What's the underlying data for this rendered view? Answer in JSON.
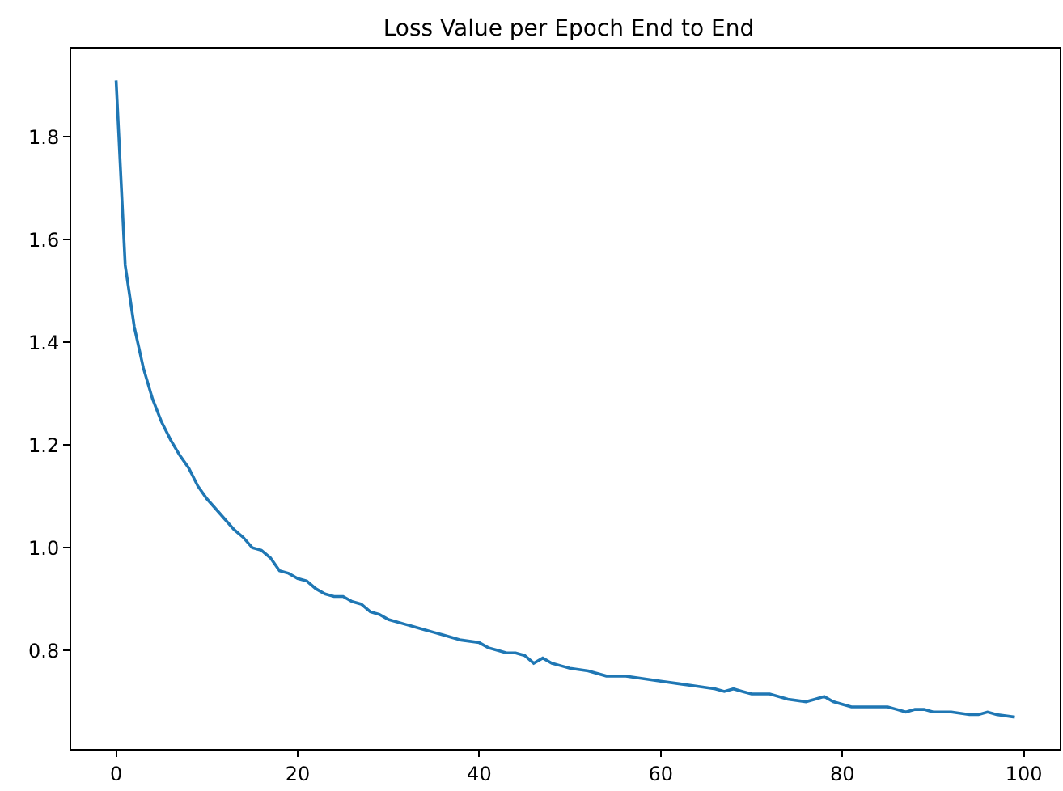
{
  "chart_data": {
    "type": "line",
    "title": "Loss Value per Epoch End to End",
    "x": [
      0,
      1,
      2,
      3,
      4,
      5,
      6,
      7,
      8,
      9,
      10,
      11,
      12,
      13,
      14,
      15,
      16,
      17,
      18,
      19,
      20,
      21,
      22,
      23,
      24,
      25,
      26,
      27,
      28,
      29,
      30,
      32,
      34,
      35,
      36,
      37,
      38,
      40,
      41,
      42,
      43,
      44,
      45,
      46,
      47,
      48,
      49,
      50,
      52,
      54,
      56,
      58,
      60,
      62,
      64,
      66,
      67,
      68,
      69,
      70,
      72,
      74,
      76,
      77,
      78,
      79,
      80,
      81,
      82,
      84,
      85,
      86,
      87,
      88,
      89,
      90,
      92,
      94,
      95,
      96,
      97,
      99
    ],
    "series": [
      {
        "color": "#1f77b4",
        "values": [
          1.91,
          1.55,
          1.43,
          1.35,
          1.29,
          1.245,
          1.21,
          1.18,
          1.155,
          1.12,
          1.095,
          1.075,
          1.055,
          1.035,
          1.02,
          1.0,
          0.995,
          0.98,
          0.955,
          0.95,
          0.94,
          0.935,
          0.92,
          0.91,
          0.905,
          0.905,
          0.895,
          0.89,
          0.875,
          0.87,
          0.86,
          0.85,
          0.84,
          0.835,
          0.83,
          0.825,
          0.82,
          0.815,
          0.805,
          0.8,
          0.795,
          0.795,
          0.79,
          0.775,
          0.785,
          0.775,
          0.77,
          0.765,
          0.76,
          0.75,
          0.75,
          0.745,
          0.74,
          0.735,
          0.73,
          0.725,
          0.72,
          0.725,
          0.72,
          0.715,
          0.715,
          0.705,
          0.7,
          0.705,
          0.71,
          0.7,
          0.695,
          0.69,
          0.69,
          0.69,
          0.69,
          0.685,
          0.68,
          0.685,
          0.685,
          0.68,
          0.68,
          0.675,
          0.675,
          0.68,
          0.675,
          0.67
        ]
      }
    ],
    "xlim": [
      -4.95,
      103.95
    ],
    "xticks": [
      0,
      20,
      40,
      60,
      80,
      100
    ],
    "ylim": [
      0.608,
      1.972
    ],
    "yticks": [
      {
        "value": 0.8,
        "label": "0.8"
      },
      {
        "value": 1.0,
        "label": "1.0"
      },
      {
        "value": 1.2,
        "label": "1.2"
      },
      {
        "value": 1.4,
        "label": "1.4"
      },
      {
        "value": 1.6,
        "label": "1.6"
      },
      {
        "value": 1.8,
        "label": "1.8"
      }
    ],
    "marker": "none",
    "line_style": "solid"
  }
}
